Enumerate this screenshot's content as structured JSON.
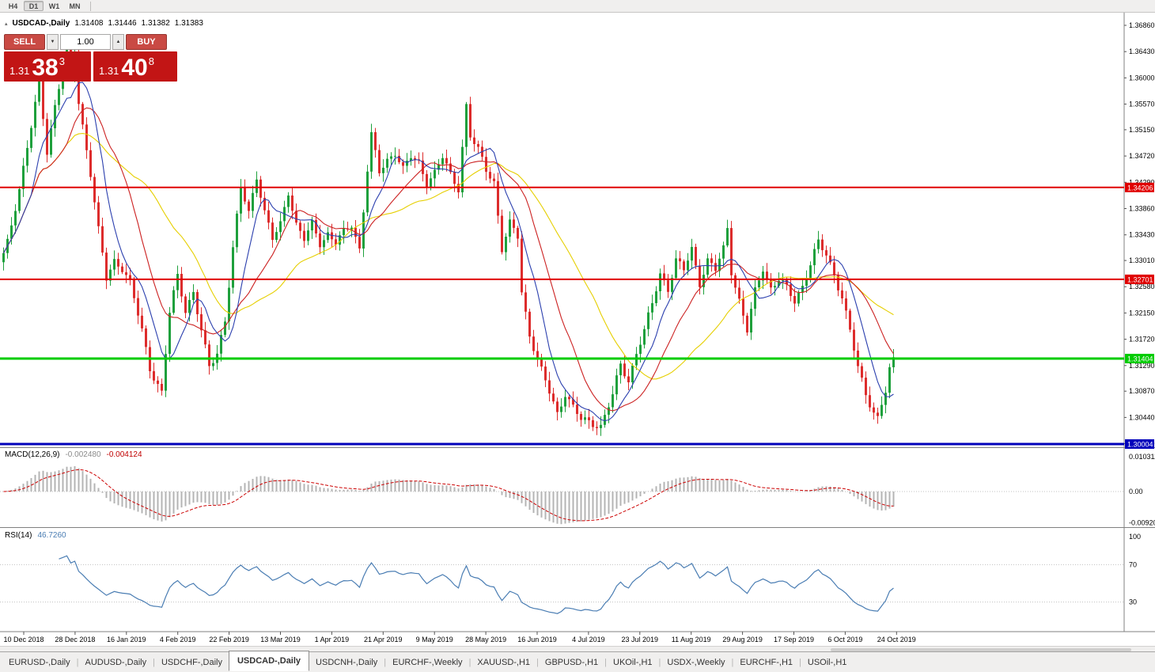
{
  "colors": {
    "up": "#1ea03c",
    "down": "#dd2c2c",
    "ma_fast": "#2b3fae",
    "ma_mid": "#cc2222",
    "ma_slow": "#e6cf00",
    "macd_hist": "#b4b4b4",
    "macd_signal": "#cc0000",
    "rsi_line": "#4a7db3",
    "axis_line": "#808080",
    "grid_dotted": "#c0c0c0"
  },
  "toolbar": {
    "periods": [
      "H4",
      "D1",
      "W1",
      "MN"
    ],
    "active_period": "D1"
  },
  "quote_header": {
    "collapse_icon": "▴",
    "symbol": "USDCAD-,Daily",
    "open": "1.31408",
    "high": "1.31446",
    "low": "1.31382",
    "close": "1.31383"
  },
  "trade_panel": {
    "sell_label": "SELL",
    "buy_label": "BUY",
    "volume": "1.00",
    "volume_down_icon": "▼",
    "volume_up_icon": "▲",
    "sell_price_small": "1.31",
    "sell_price_big": "38",
    "sell_price_sup": "3",
    "buy_price_small": "1.31",
    "buy_price_big": "40",
    "buy_price_sup": "8"
  },
  "chart_data": {
    "type": "candlestick",
    "symbol": "USDCAD-",
    "timeframe": "Daily",
    "price_range": {
      "top": 1.3686,
      "bottom": 1.30004
    },
    "price_axis_labels": [
      "1.36860",
      "1.36430",
      "1.36000",
      "1.35570",
      "1.35150",
      "1.34720",
      "1.34290",
      "1.33860",
      "1.33430",
      "1.33010",
      "1.32580",
      "1.32150",
      "1.31720",
      "1.31290",
      "1.30870",
      "1.30440",
      "1.30010"
    ],
    "hlines": [
      {
        "price": 1.34206,
        "label": "1.34206",
        "color": "#e00000",
        "width": 2
      },
      {
        "price": 1.32701,
        "label": "1.32701",
        "color": "#e00000",
        "width": 2
      },
      {
        "price": 1.31404,
        "label": "1.31404",
        "color": "#00cc00",
        "width": 3
      },
      {
        "price": 1.30004,
        "label": "1.30004",
        "color": "#0000bb",
        "width": 3
      }
    ],
    "x_labels": [
      "10 Dec 2018",
      "28 Dec 2018",
      "16 Jan 2019",
      "4 Feb 2019",
      "22 Feb 2019",
      "13 Mar 2019",
      "1 Apr 2019",
      "21 Apr 2019",
      "9 May 2019",
      "28 May 2019",
      "16 Jun 2019",
      "4 Jul 2019",
      "23 Jul 2019",
      "11 Aug 2019",
      "29 Aug 2019",
      "17 Sep 2019",
      "6 Oct 2019",
      "24 Oct 2019"
    ],
    "num_candles": 226,
    "close_path_keypoints": [
      [
        0,
        1.331
      ],
      [
        1,
        1.333
      ],
      [
        4,
        1.342
      ],
      [
        7,
        1.352
      ],
      [
        9,
        1.359
      ],
      [
        11,
        1.348
      ],
      [
        13,
        1.3555
      ],
      [
        16,
        1.365
      ],
      [
        17,
        1.36
      ],
      [
        18,
        1.3645
      ],
      [
        19,
        1.356
      ],
      [
        22,
        1.3445
      ],
      [
        24,
        1.335
      ],
      [
        26,
        1.327
      ],
      [
        28,
        1.33
      ],
      [
        30,
        1.329
      ],
      [
        32,
        1.3265
      ],
      [
        35,
        1.3185
      ],
      [
        37,
        1.3125
      ],
      [
        40,
        1.3085
      ],
      [
        42,
        1.3215
      ],
      [
        44,
        1.3275
      ],
      [
        46,
        1.322
      ],
      [
        48,
        1.325
      ],
      [
        50,
        1.3185
      ],
      [
        52,
        1.3125
      ],
      [
        54,
        1.315
      ],
      [
        56,
        1.3205
      ],
      [
        58,
        1.332
      ],
      [
        60,
        1.342
      ],
      [
        62,
        1.338
      ],
      [
        64,
        1.344
      ],
      [
        66,
        1.338
      ],
      [
        68,
        1.3335
      ],
      [
        70,
        1.336
      ],
      [
        72,
        1.3415
      ],
      [
        74,
        1.336
      ],
      [
        76,
        1.3335
      ],
      [
        78,
        1.336
      ],
      [
        80,
        1.333
      ],
      [
        82,
        1.3345
      ],
      [
        84,
        1.333
      ],
      [
        86,
        1.3345
      ],
      [
        88,
        1.336
      ],
      [
        90,
        1.332
      ],
      [
        92,
        1.345
      ],
      [
        93,
        1.3505
      ],
      [
        95,
        1.3445
      ],
      [
        97,
        1.3465
      ],
      [
        99,
        1.348
      ],
      [
        101,
        1.345
      ],
      [
        103,
        1.347
      ],
      [
        105,
        1.346
      ],
      [
        107,
        1.343
      ],
      [
        109,
        1.3445
      ],
      [
        111,
        1.347
      ],
      [
        113,
        1.344
      ],
      [
        115,
        1.342
      ],
      [
        117,
        1.3555
      ],
      [
        118,
        1.3505
      ],
      [
        120,
        1.348
      ],
      [
        122,
        1.345
      ],
      [
        124,
        1.343
      ],
      [
        126,
        1.332
      ],
      [
        128,
        1.336
      ],
      [
        130,
        1.334
      ],
      [
        131,
        1.325
      ],
      [
        133,
        1.318
      ],
      [
        136,
        1.312
      ],
      [
        138,
        1.3085
      ],
      [
        140,
        1.305
      ],
      [
        142,
        1.3085
      ],
      [
        144,
        1.306
      ],
      [
        146,
        1.304
      ],
      [
        149,
        1.3035
      ],
      [
        151,
        1.303
      ],
      [
        154,
        1.308
      ],
      [
        156,
        1.313
      ],
      [
        158,
        1.3105
      ],
      [
        160,
        1.315
      ],
      [
        162,
        1.3185
      ],
      [
        164,
        1.323
      ],
      [
        166,
        1.328
      ],
      [
        168,
        1.3255
      ],
      [
        170,
        1.33
      ],
      [
        172,
        1.3285
      ],
      [
        174,
        1.332
      ],
      [
        176,
        1.3265
      ],
      [
        178,
        1.33
      ],
      [
        180,
        1.3285
      ],
      [
        182,
        1.332
      ],
      [
        183,
        1.3355
      ],
      [
        184,
        1.3285
      ],
      [
        186,
        1.3235
      ],
      [
        188,
        1.3185
      ],
      [
        190,
        1.325
      ],
      [
        192,
        1.329
      ],
      [
        194,
        1.3255
      ],
      [
        196,
        1.327
      ],
      [
        198,
        1.3255
      ],
      [
        200,
        1.3235
      ],
      [
        202,
        1.326
      ],
      [
        204,
        1.3295
      ],
      [
        206,
        1.333
      ],
      [
        208,
        1.331
      ],
      [
        210,
        1.328
      ],
      [
        212,
        1.324
      ],
      [
        214,
        1.3185
      ],
      [
        216,
        1.3125
      ],
      [
        218,
        1.3085
      ],
      [
        220,
        1.3052
      ],
      [
        221,
        1.3042
      ],
      [
        222,
        1.3065
      ],
      [
        223,
        1.3085
      ],
      [
        224,
        1.312
      ],
      [
        225,
        1.3138
      ]
    ],
    "moving_averages": [
      {
        "period": 34,
        "color_key": "ma_slow"
      },
      {
        "period": 17,
        "color_key": "ma_mid"
      },
      {
        "period": 8,
        "color_key": "ma_fast"
      }
    ],
    "indicators": {
      "macd": {
        "label": "MACD(12,26,9)",
        "value_main": "-0.002480",
        "value_signal": "-0.004124",
        "axis_top": "0.010311",
        "axis_zero": "0.00",
        "axis_bottom": "-0.009203",
        "params": [
          12,
          26,
          9
        ]
      },
      "rsi": {
        "label": "RSI(14)",
        "value": "46.7260",
        "period": 14,
        "levels": [
          100,
          70,
          30
        ],
        "axis": [
          "100",
          "70",
          "30"
        ]
      }
    }
  },
  "tabs": {
    "items": [
      "EURUSD-,Daily",
      "AUDUSD-,Daily",
      "USDCHF-,Daily",
      "USDCAD-,Daily",
      "USDCNH-,Daily",
      "EURCHF-,Weekly",
      "XAUUSD-,H1",
      "GBPUSD-,H1",
      "UKOil-,H1",
      "USDX-,Weekly",
      "EURCHF-,H1",
      "USOil-,H1"
    ],
    "active": "USDCAD-,Daily"
  }
}
